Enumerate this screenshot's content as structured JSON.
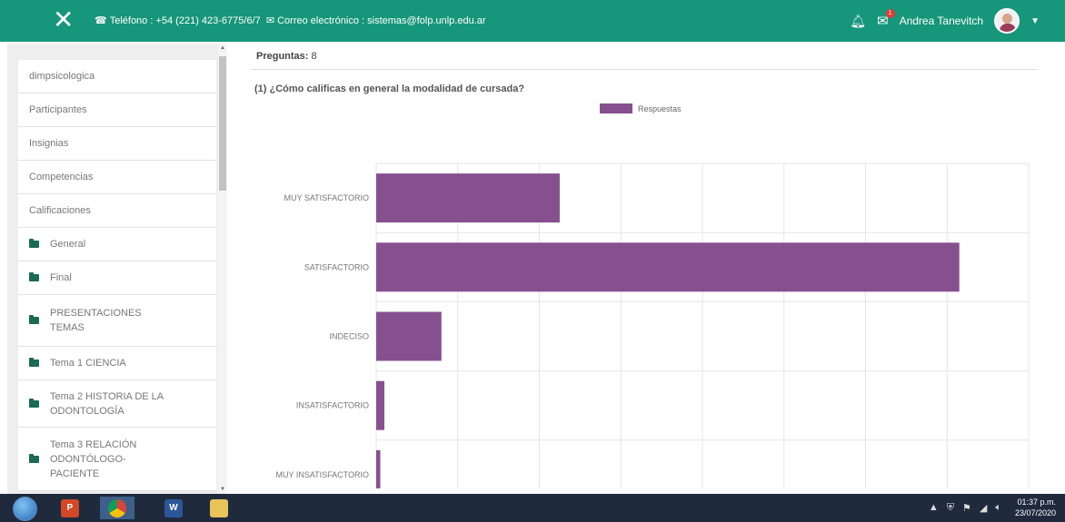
{
  "header": {
    "phone_text": "Teléfono : +54 (221) 423-6775/6/7",
    "email_text": "Correo electrónico : sistemas@folp.unlp.edu.ar",
    "notifications_badge": "1",
    "user_name": "Andrea Tanevitch",
    "icons": [
      "close-icon",
      "phone-icon",
      "envelope-icon",
      "bell-icon",
      "chat-icon",
      "avatar",
      "caret-down-icon"
    ]
  },
  "sidebar": {
    "items": [
      {
        "label": "dimpsicologica",
        "folder": false
      },
      {
        "label": "Participantes",
        "folder": false
      },
      {
        "label": "Insignias",
        "folder": false
      },
      {
        "label": "Competencias",
        "folder": false
      },
      {
        "label": "Calificaciones",
        "folder": false
      },
      {
        "label": "General",
        "folder": true
      },
      {
        "label": "Final",
        "folder": true
      },
      {
        "label": "PRESENTACIONES TEMAS",
        "folder": true
      },
      {
        "label": "Tema 1 CIENCIA",
        "folder": true
      },
      {
        "label": "Tema 2 HISTORIA DE LA ODONTOLOGÍA",
        "folder": true
      },
      {
        "label": "Tema 3 RELACIÓN ODONTÓLOGO-PACIENTE",
        "folder": true
      }
    ]
  },
  "main": {
    "questions_label": "Preguntas:",
    "questions_value": "8",
    "question_title": "(1) ¿Cómo calificas en general la modalidad de cursada?"
  },
  "chart_data": {
    "type": "bar",
    "orientation": "horizontal",
    "categories": [
      "MUY SATISFACTORIO",
      "SATISFACTORIO",
      "INDECISO",
      "INSATISFACTORIO",
      "MUY INSATISFACTORIO"
    ],
    "series": [
      {
        "name": "Respuestas",
        "values": [
          45,
          143,
          16,
          2,
          1
        ],
        "color": "#86508f"
      }
    ],
    "xlim": [
      0,
      160
    ],
    "xticks": [
      0,
      20,
      40,
      60,
      80,
      100,
      120,
      140,
      160
    ],
    "grid": true,
    "legend": "top-center"
  },
  "taskbar": {
    "apps": [
      "powerpoint",
      "chrome",
      "word",
      "file-explorer"
    ],
    "time": "01:37 p.m.",
    "date": "23/07/2020"
  }
}
